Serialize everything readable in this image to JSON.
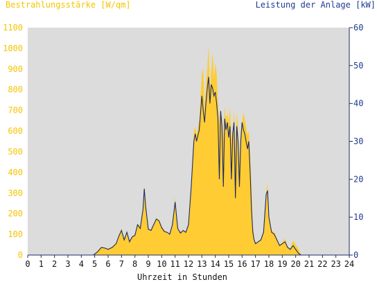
{
  "chart_data": {
    "type": "area",
    "title_left": "Bestrahlungsstärke [W/qm]",
    "title_right": "Leistung der Anlage [kW]",
    "xlabel": "Uhrzeit in Stunden",
    "x_ticks": [
      "0",
      "1",
      "2",
      "3",
      "4",
      "5",
      "6",
      "7",
      "8",
      "9",
      "10",
      "11",
      "12",
      "13",
      "14",
      "15",
      "16",
      "17",
      "18",
      "19",
      "20",
      "21",
      "22",
      "23",
      "24"
    ],
    "y_left_ticks": [
      "0",
      "100",
      "200",
      "300",
      "400",
      "500",
      "600",
      "700",
      "800",
      "900",
      "1000",
      "1100"
    ],
    "y_right_ticks": [
      "0",
      "10",
      "20",
      "30",
      "40",
      "50",
      "60"
    ],
    "xlim": [
      0,
      24
    ],
    "ylim_left": [
      0,
      1100
    ],
    "ylim_right": [
      0,
      60
    ],
    "grid": false,
    "colors": {
      "irradiance": "#ffcc33",
      "power": "#1a2a66",
      "plot_bg": "#dcdcdc",
      "left_axis_text": "#f5c400",
      "right_axis_text": "#1f3a93",
      "axis": "#1a2a66"
    },
    "series": [
      {
        "axis": "left",
        "x": [
          0,
          4.9,
          5.2,
          5.5,
          5.8,
          6.0,
          6.3,
          6.6,
          6.8,
          7.0,
          7.2,
          7.4,
          7.6,
          7.8,
          8.0,
          8.2,
          8.4,
          8.6,
          8.7,
          8.8,
          9.0,
          9.2,
          9.4,
          9.6,
          9.8,
          10.0,
          10.2,
          10.4,
          10.6,
          10.8,
          11.0,
          11.2,
          11.4,
          11.6,
          11.8,
          12.0,
          12.2,
          12.4,
          12.5,
          12.6,
          12.8,
          13.0,
          13.1,
          13.2,
          13.3,
          13.4,
          13.5,
          13.6,
          13.7,
          13.8,
          13.9,
          14.0,
          14.1,
          14.2,
          14.3,
          14.4,
          14.5,
          14.6,
          14.7,
          14.8,
          14.9,
          15.0,
          15.1,
          15.2,
          15.3,
          15.4,
          15.5,
          15.6,
          15.7,
          15.8,
          15.9,
          16.0,
          16.1,
          16.2,
          16.3,
          16.4,
          16.5,
          16.6,
          16.7,
          16.8,
          16.9,
          17.0,
          17.2,
          17.4,
          17.6,
          17.8,
          17.9,
          18.0,
          18.2,
          18.4,
          18.6,
          18.8,
          19.0,
          19.2,
          19.4,
          19.6,
          19.8,
          20.0,
          20.2,
          20.4,
          24
        ],
        "y": [
          0,
          0,
          20,
          40,
          35,
          30,
          40,
          60,
          90,
          130,
          80,
          110,
          70,
          90,
          100,
          150,
          140,
          220,
          330,
          250,
          130,
          120,
          150,
          180,
          170,
          140,
          120,
          110,
          100,
          150,
          280,
          130,
          110,
          120,
          110,
          150,
          330,
          600,
          620,
          580,
          650,
          880,
          900,
          700,
          820,
          900,
          1020,
          800,
          900,
          980,
          850,
          930,
          880,
          750,
          640,
          700,
          660,
          560,
          720,
          650,
          690,
          640,
          720,
          560,
          600,
          700,
          500,
          690,
          620,
          450,
          600,
          640,
          690,
          660,
          620,
          580,
          600,
          500,
          350,
          150,
          80,
          60,
          60,
          80,
          100,
          300,
          350,
          200,
          120,
          110,
          80,
          50,
          60,
          80,
          40,
          30,
          70,
          50,
          30,
          0,
          0
        ]
      },
      {
        "axis": "right",
        "x": [
          0,
          4.9,
          5.2,
          5.5,
          5.8,
          6.0,
          6.3,
          6.6,
          6.8,
          7.0,
          7.2,
          7.4,
          7.6,
          7.8,
          8.0,
          8.2,
          8.4,
          8.6,
          8.7,
          8.8,
          9.0,
          9.2,
          9.4,
          9.6,
          9.8,
          10.0,
          10.2,
          10.4,
          10.6,
          10.8,
          11.0,
          11.2,
          11.4,
          11.6,
          11.8,
          12.0,
          12.2,
          12.4,
          12.5,
          12.6,
          12.8,
          13.0,
          13.1,
          13.2,
          13.3,
          13.4,
          13.5,
          13.6,
          13.7,
          13.8,
          13.9,
          14.0,
          14.1,
          14.2,
          14.3,
          14.4,
          14.5,
          14.6,
          14.7,
          14.8,
          14.9,
          15.0,
          15.1,
          15.2,
          15.3,
          15.4,
          15.5,
          15.6,
          15.7,
          15.8,
          15.9,
          16.0,
          16.1,
          16.2,
          16.3,
          16.4,
          16.5,
          16.6,
          16.7,
          16.8,
          16.9,
          17.0,
          17.2,
          17.4,
          17.6,
          17.8,
          17.9,
          18.0,
          18.2,
          18.4,
          18.6,
          18.8,
          19.0,
          19.2,
          19.4,
          19.6,
          19.8,
          20.0,
          20.2,
          20.4,
          24
        ],
        "y": [
          0,
          0,
          0.8,
          2.0,
          1.8,
          1.5,
          2.0,
          3.0,
          5.0,
          6.5,
          4.0,
          6.0,
          3.5,
          4.8,
          5.2,
          8.0,
          7.0,
          12.0,
          17.5,
          13.0,
          6.8,
          6.5,
          8.0,
          9.5,
          9.0,
          7.2,
          6.2,
          6.0,
          5.5,
          8.0,
          14.0,
          7.0,
          5.8,
          6.5,
          6.0,
          8.0,
          18.0,
          30.0,
          32.0,
          30.0,
          33.0,
          42.0,
          38.0,
          35.0,
          40.0,
          44.0,
          47.0,
          40.0,
          45.0,
          44.0,
          42.0,
          43.0,
          40.0,
          36.0,
          20.0,
          38.0,
          34.0,
          18.0,
          36.0,
          33.0,
          35.0,
          31.0,
          34.0,
          20.0,
          32.0,
          35.0,
          15.0,
          34.0,
          30.0,
          18.0,
          30.0,
          35.0,
          33.0,
          32.0,
          30.0,
          28.0,
          30.0,
          22.0,
          12.0,
          6.0,
          4.0,
          3.0,
          3.5,
          4.0,
          6.0,
          16.0,
          17.0,
          10.0,
          6.0,
          5.5,
          4.0,
          2.5,
          3.0,
          3.5,
          2.0,
          1.5,
          2.5,
          1.5,
          0.5,
          0,
          0
        ]
      }
    ]
  }
}
